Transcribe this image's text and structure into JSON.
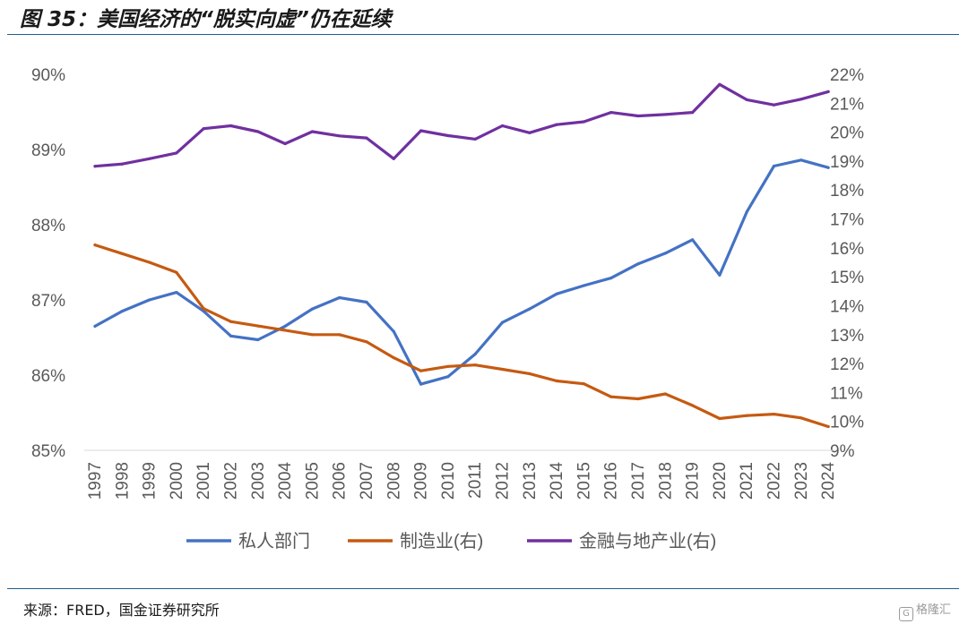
{
  "figure": {
    "title": "图 35：美国经济的“脱实向虚”仍在延续",
    "source": "来源：FRED，国金证券研究所",
    "watermark": "格隆汇"
  },
  "colors": {
    "rule": "#1f5f8f",
    "axis_text": "#595959",
    "private": "#4472C4",
    "manufacturing": "#C55A11",
    "finance": "#7030A0"
  },
  "chart_data": {
    "type": "line",
    "title": "图 35：美国经济的“脱实向虚”仍在延续",
    "categories": [
      "1997",
      "1998",
      "1999",
      "2000",
      "2001",
      "2002",
      "2003",
      "2004",
      "2005",
      "2006",
      "2007",
      "2008",
      "2009",
      "2010",
      "2011",
      "2012",
      "2013",
      "2014",
      "2015",
      "2016",
      "2017",
      "2018",
      "2019",
      "2020",
      "2021",
      "2022",
      "2023",
      "2024"
    ],
    "left_axis": {
      "ylim": [
        85,
        90
      ],
      "ticks": [
        85,
        86,
        87,
        88,
        89,
        90
      ],
      "tick_labels": [
        "85%",
        "86%",
        "87%",
        "88%",
        "89%",
        "90%"
      ]
    },
    "right_axis": {
      "ylim": [
        9,
        22
      ],
      "ticks": [
        9,
        10,
        11,
        12,
        13,
        14,
        15,
        16,
        17,
        18,
        19,
        20,
        21,
        22
      ],
      "tick_labels": [
        "9%",
        "10%",
        "11%",
        "12%",
        "13%",
        "14%",
        "15%",
        "16%",
        "17%",
        "18%",
        "19%",
        "20%",
        "21%",
        "22%"
      ]
    },
    "series": [
      {
        "name": "私人部门",
        "axis": "left",
        "color": "#4472C4",
        "values": [
          86.65,
          86.85,
          87.0,
          87.1,
          86.85,
          86.52,
          86.47,
          86.65,
          86.88,
          87.03,
          86.97,
          86.58,
          85.88,
          85.98,
          86.28,
          86.7,
          86.88,
          87.08,
          87.19,
          87.29,
          87.48,
          87.62,
          87.8,
          87.33,
          88.17,
          88.78,
          88.86,
          88.76
        ]
      },
      {
        "name": "制造业(右)",
        "axis": "right",
        "color": "#C55A11",
        "values": [
          16.1,
          15.8,
          15.5,
          15.15,
          13.9,
          13.45,
          13.3,
          13.15,
          13.0,
          13.0,
          12.75,
          12.2,
          11.75,
          11.9,
          11.95,
          11.8,
          11.65,
          11.4,
          11.3,
          10.85,
          10.78,
          10.95,
          10.55,
          10.1,
          10.2,
          10.25,
          10.12,
          9.82
        ]
      },
      {
        "name": "金融与地产业(右)",
        "axis": "right",
        "color": "#7030A0",
        "values": [
          18.82,
          18.9,
          19.08,
          19.28,
          20.12,
          20.22,
          20.02,
          19.6,
          20.02,
          19.87,
          19.8,
          19.08,
          20.05,
          19.88,
          19.76,
          20.22,
          19.98,
          20.26,
          20.36,
          20.68,
          20.56,
          20.61,
          20.68,
          21.65,
          21.12,
          20.94,
          21.14,
          21.4
        ]
      }
    ],
    "legend_position": "bottom",
    "grid": false
  }
}
